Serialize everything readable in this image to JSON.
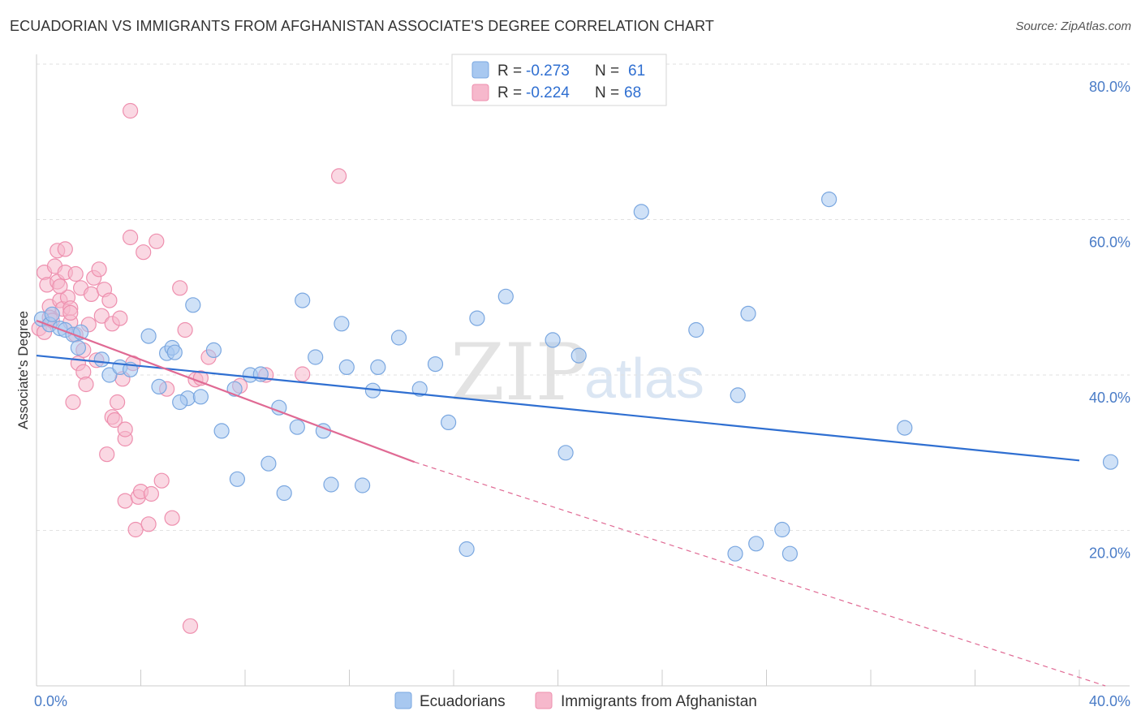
{
  "title": "ECUADORIAN VS IMMIGRANTS FROM AFGHANISTAN ASSOCIATE'S DEGREE CORRELATION CHART",
  "source": "Source: ZipAtlas.com",
  "watermark": {
    "zip": "ZIP",
    "atlas": "atlas"
  },
  "colors": {
    "blue_fill": "#a8c8f0",
    "blue_stroke": "#7aa7e0",
    "blue_line": "#2f6fd1",
    "pink_fill": "#f6b8cc",
    "pink_stroke": "#ee8fae",
    "pink_line": "#e06a94",
    "grid": "#e2e2e2",
    "tick_text": "#4a7cc7"
  },
  "legend": {
    "series": [
      {
        "r_label": "R = ",
        "r_value": "-0.273",
        "n_label": "N = ",
        "n_value": "61"
      },
      {
        "r_label": "R = ",
        "r_value": "-0.224",
        "n_label": "N = ",
        "n_value": "68"
      }
    ]
  },
  "chart_data": {
    "type": "scatter",
    "xlabel": "",
    "ylabel": "Associate's Degree",
    "xlim": [
      0,
      40
    ],
    "ylim": [
      0,
      85
    ],
    "x_tick_labels": [
      "0.0%",
      "40.0%"
    ],
    "y_ticks": [
      20,
      40,
      60,
      80
    ],
    "y_tick_labels": [
      "20.0%",
      "40.0%",
      "60.0%",
      "80.0%"
    ],
    "series": [
      {
        "name": "Ecuadorians",
        "r": -0.273,
        "n": 61,
        "trend": {
          "x0": 0,
          "y0": 42.5,
          "x1": 40,
          "y1": 29.0,
          "dashed_to": null
        },
        "points": [
          [
            0.2,
            47.2
          ],
          [
            0.5,
            46.5
          ],
          [
            0.6,
            47.8
          ],
          [
            0.9,
            46.0
          ],
          [
            1.1,
            45.8
          ],
          [
            1.4,
            45.2
          ],
          [
            1.7,
            45.5
          ],
          [
            1.6,
            43.5
          ],
          [
            2.5,
            42.0
          ],
          [
            2.8,
            40.0
          ],
          [
            3.2,
            41.0
          ],
          [
            3.6,
            40.7
          ],
          [
            4.3,
            45.0
          ],
          [
            4.7,
            38.5
          ],
          [
            5.0,
            42.8
          ],
          [
            5.2,
            43.5
          ],
          [
            5.8,
            37.0
          ],
          [
            5.5,
            36.5
          ],
          [
            6.0,
            49.0
          ],
          [
            6.3,
            37.2
          ],
          [
            6.8,
            43.2
          ],
          [
            7.1,
            32.8
          ],
          [
            7.6,
            38.2
          ],
          [
            7.7,
            26.6
          ],
          [
            8.2,
            40.0
          ],
          [
            8.6,
            40.1
          ],
          [
            8.9,
            28.6
          ],
          [
            9.3,
            35.8
          ],
          [
            9.5,
            24.8
          ],
          [
            10.0,
            33.3
          ],
          [
            10.2,
            49.6
          ],
          [
            10.7,
            42.3
          ],
          [
            11.0,
            32.8
          ],
          [
            11.3,
            25.9
          ],
          [
            11.7,
            46.6
          ],
          [
            11.9,
            41.0
          ],
          [
            12.5,
            25.8
          ],
          [
            12.9,
            38.0
          ],
          [
            13.1,
            41.0
          ],
          [
            13.9,
            44.8
          ],
          [
            14.7,
            38.2
          ],
          [
            15.3,
            41.4
          ],
          [
            15.8,
            33.9
          ],
          [
            16.5,
            17.6
          ],
          [
            16.9,
            47.3
          ],
          [
            18.0,
            50.1
          ],
          [
            19.8,
            44.5
          ],
          [
            20.3,
            30.0
          ],
          [
            20.8,
            42.5
          ],
          [
            23.2,
            61.0
          ],
          [
            25.3,
            45.8
          ],
          [
            26.8,
            17.0
          ],
          [
            26.9,
            37.4
          ],
          [
            27.3,
            47.9
          ],
          [
            27.6,
            18.3
          ],
          [
            28.6,
            20.1
          ],
          [
            28.9,
            17.0
          ],
          [
            30.4,
            62.6
          ],
          [
            33.3,
            33.2
          ],
          [
            41.2,
            28.8
          ],
          [
            5.3,
            42.9
          ]
        ]
      },
      {
        "name": "Immigrants from Afghanistan",
        "r": -0.224,
        "n": 68,
        "trend": {
          "x0": 0,
          "y0": 47.0,
          "x1": 14.5,
          "y1": 28.8,
          "dashed_to": [
            41.0,
            0.0
          ]
        },
        "points": [
          [
            0.1,
            46.0
          ],
          [
            0.3,
            45.5
          ],
          [
            0.3,
            53.2
          ],
          [
            0.4,
            51.6
          ],
          [
            0.5,
            48.8
          ],
          [
            0.5,
            47.4
          ],
          [
            0.6,
            47.0
          ],
          [
            0.7,
            54.0
          ],
          [
            0.8,
            52.0
          ],
          [
            0.8,
            56.0
          ],
          [
            0.9,
            49.6
          ],
          [
            1.0,
            48.5
          ],
          [
            1.1,
            53.2
          ],
          [
            1.1,
            56.2
          ],
          [
            1.2,
            50.0
          ],
          [
            1.3,
            48.6
          ],
          [
            1.3,
            46.8
          ],
          [
            1.4,
            36.5
          ],
          [
            1.5,
            53.0
          ],
          [
            1.5,
            45.2
          ],
          [
            1.6,
            41.5
          ],
          [
            1.7,
            51.2
          ],
          [
            1.8,
            43.2
          ],
          [
            1.8,
            40.4
          ],
          [
            1.9,
            38.8
          ],
          [
            2.0,
            46.5
          ],
          [
            2.1,
            50.4
          ],
          [
            2.2,
            52.5
          ],
          [
            2.3,
            41.9
          ],
          [
            2.4,
            53.6
          ],
          [
            2.5,
            47.6
          ],
          [
            2.6,
            51.0
          ],
          [
            2.7,
            29.8
          ],
          [
            2.8,
            49.6
          ],
          [
            2.9,
            34.6
          ],
          [
            2.9,
            46.6
          ],
          [
            3.0,
            34.2
          ],
          [
            3.1,
            36.5
          ],
          [
            3.2,
            47.3
          ],
          [
            3.3,
            39.5
          ],
          [
            3.4,
            31.8
          ],
          [
            3.4,
            33.0
          ],
          [
            3.4,
            23.8
          ],
          [
            3.6,
            57.7
          ],
          [
            3.7,
            41.5
          ],
          [
            3.8,
            20.1
          ],
          [
            3.9,
            24.3
          ],
          [
            4.0,
            25.0
          ],
          [
            4.1,
            55.8
          ],
          [
            4.3,
            20.8
          ],
          [
            4.4,
            24.7
          ],
          [
            4.6,
            57.2
          ],
          [
            4.8,
            26.4
          ],
          [
            5.0,
            38.2
          ],
          [
            5.2,
            21.6
          ],
          [
            5.5,
            51.2
          ],
          [
            5.7,
            45.8
          ],
          [
            5.9,
            7.7
          ],
          [
            6.1,
            39.4
          ],
          [
            6.3,
            39.6
          ],
          [
            6.6,
            42.3
          ],
          [
            7.8,
            38.6
          ],
          [
            8.8,
            40.0
          ],
          [
            10.2,
            40.1
          ],
          [
            11.6,
            65.6
          ],
          [
            3.6,
            74.0
          ],
          [
            1.3,
            48.0
          ],
          [
            0.9,
            51.4
          ]
        ]
      }
    ]
  }
}
